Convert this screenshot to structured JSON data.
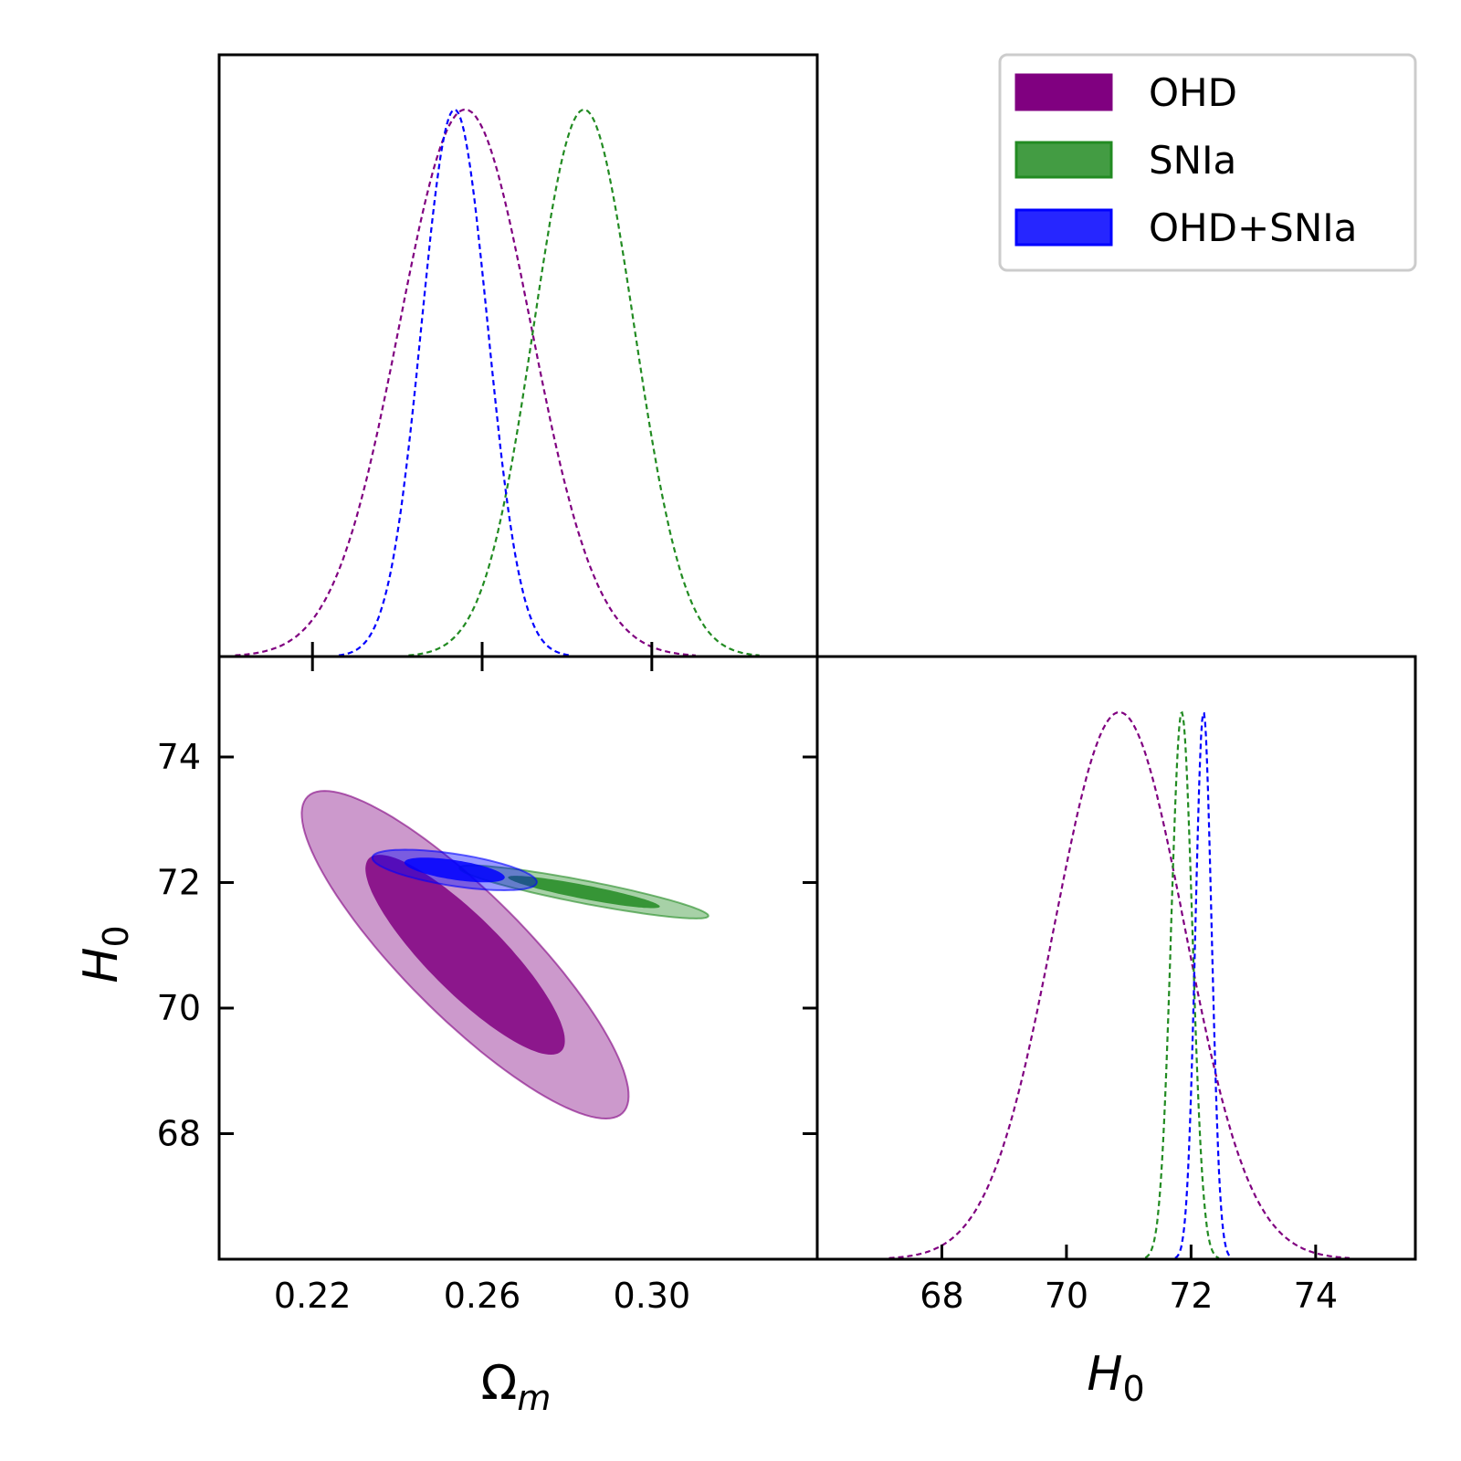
{
  "chart_data": {
    "type": "triangle",
    "legend_position": "top-right",
    "series": [
      {
        "name": "OHD",
        "color": "#800080",
        "om_mean": 0.256,
        "om_sigma": 0.0155,
        "h0_mean": 70.85,
        "h0_sigma": 1.05,
        "corr": -0.86
      },
      {
        "name": "SNIa",
        "color": "#228B22",
        "om_mean": 0.284,
        "om_sigma": 0.0118,
        "h0_mean": 71.85,
        "h0_sigma": 0.17,
        "corr": -0.9
      },
      {
        "name": "OHD+SNIa",
        "color": "#0000FF",
        "om_mean": 0.2535,
        "om_sigma": 0.0078,
        "h0_mean": 72.2,
        "h0_sigma": 0.13,
        "corr": -0.6
      }
    ],
    "panels": {
      "omega_1d": {
        "xlim": [
          0.198,
          0.339
        ],
        "ylabel": ""
      },
      "contour": {
        "xlim": [
          0.198,
          0.339
        ],
        "ylim": [
          66.0,
          75.6
        ],
        "xticks": [
          0.22,
          0.26,
          0.3
        ],
        "xtick_labels": [
          "0.22",
          "0.26",
          "0.30"
        ],
        "yticks": [
          68,
          70,
          72,
          74
        ],
        "ytick_labels": [
          "68",
          "70",
          "72",
          "74"
        ],
        "xlabel": "Ω",
        "xlabel_sub": "m",
        "ylabel": "H",
        "ylabel_sub": "0"
      },
      "h0_1d": {
        "xlim": [
          66.0,
          75.6
        ],
        "xticks": [
          68,
          70,
          72,
          74
        ],
        "xtick_labels": [
          "68",
          "70",
          "72",
          "74"
        ],
        "xlabel": "H",
        "xlabel_sub": "0"
      }
    }
  }
}
